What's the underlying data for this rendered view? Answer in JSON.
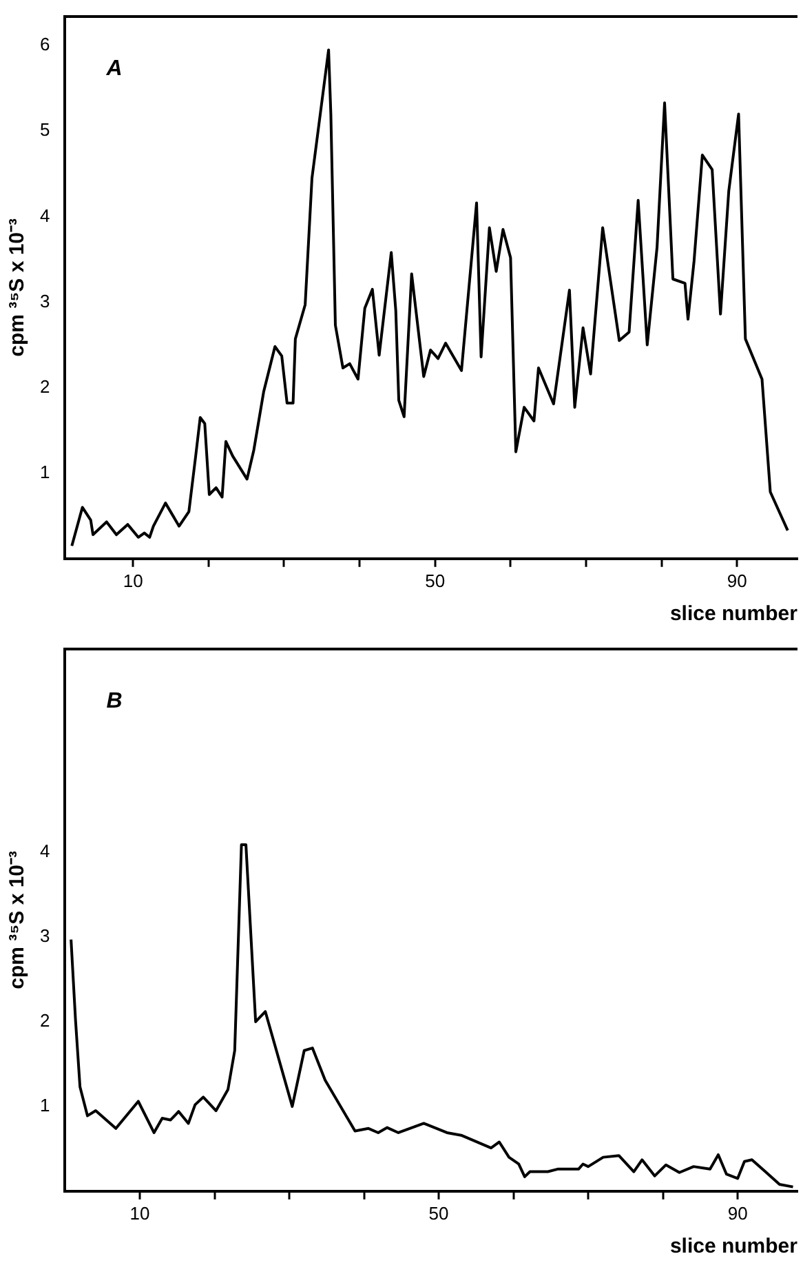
{
  "chart_data": [
    {
      "type": "line",
      "title": "A",
      "xlabel": "slice number",
      "ylabel": "cpm ³⁵S x 10⁻³",
      "grid": false,
      "legend": false,
      "marker": "none",
      "line_style": "solid",
      "xlim": [
        1,
        98
      ],
      "ylim": [
        0,
        6.34
      ],
      "xticks": [
        10,
        {
          "value": 20,
          "label": null
        },
        {
          "value": 30,
          "label": null
        },
        {
          "value": 40,
          "label": null
        },
        50,
        {
          "value": 60,
          "label": null
        },
        {
          "value": 70,
          "label": null
        },
        {
          "value": 80,
          "label": null
        },
        90
      ],
      "yticks": [
        1,
        2,
        3,
        4,
        5,
        6
      ],
      "series": [
        {
          "color": "#000000",
          "x": [
            1.9,
            3.3,
            4.4,
            4.7,
            6.5,
            7.8,
            9.3,
            10.7,
            11.5,
            12.2,
            12.7,
            14.3,
            16.1,
            17.4,
            18.3,
            18.9,
            19.5,
            20.1,
            21.0,
            21.8,
            22.3,
            23.2,
            25.1,
            26.0,
            27.3,
            28.8,
            29.7,
            30.4,
            31.2,
            31.5,
            32.8,
            33.7,
            35.9,
            36.2,
            36.8,
            37.8,
            38.7,
            39.8,
            40.7,
            41.7,
            42.6,
            44.2,
            44.8,
            45.2,
            45.9,
            46.9,
            48.5,
            49.4,
            50.4,
            51.4,
            53.5,
            55.5,
            56.1,
            57.2,
            58.1,
            59.0,
            60.0,
            60.7,
            61.8,
            63.1,
            63.7,
            65.7,
            67.8,
            68.5,
            69.6,
            70.6,
            72.2,
            74.4,
            75.7,
            76.9,
            78.1,
            79.4,
            80.4,
            81.5,
            83.1,
            83.5,
            84.3,
            85.4,
            86.7,
            87.8,
            88.9,
            90.2,
            91.1,
            93.3,
            94.4,
            96.7
          ],
          "values": [
            0.15,
            0.6,
            0.45,
            0.28,
            0.43,
            0.28,
            0.4,
            0.25,
            0.3,
            0.25,
            0.38,
            0.65,
            0.38,
            0.55,
            1.2,
            1.65,
            1.58,
            0.75,
            0.83,
            0.72,
            1.37,
            1.2,
            0.93,
            1.27,
            1.95,
            2.48,
            2.37,
            1.82,
            1.82,
            2.57,
            2.97,
            4.45,
            5.95,
            5.2,
            2.73,
            2.23,
            2.28,
            2.1,
            2.93,
            3.15,
            2.38,
            3.58,
            2.9,
            1.85,
            1.66,
            3.33,
            2.13,
            2.44,
            2.34,
            2.52,
            2.2,
            4.16,
            2.36,
            3.87,
            3.36,
            3.85,
            3.52,
            1.25,
            1.77,
            1.61,
            2.23,
            1.81,
            3.14,
            1.77,
            2.7,
            2.16,
            3.87,
            2.55,
            2.65,
            4.19,
            2.5,
            3.64,
            5.33,
            3.27,
            3.22,
            2.8,
            3.48,
            4.72,
            4.55,
            2.86,
            4.3,
            5.2,
            2.57,
            2.1,
            0.78,
            0.33
          ]
        }
      ]
    },
    {
      "type": "line",
      "title": "B",
      "xlabel": "slice number",
      "ylabel": "cpm ³⁵S x 10⁻³",
      "grid": false,
      "legend": false,
      "marker": "none",
      "line_style": "solid",
      "xlim": [
        0,
        98
      ],
      "ylim": [
        0,
        6.4
      ],
      "xticks": [
        10,
        {
          "value": 20,
          "label": null
        },
        {
          "value": 30,
          "label": null
        },
        {
          "value": 40,
          "label": null
        },
        50,
        {
          "value": 60,
          "label": null
        },
        {
          "value": 70,
          "label": null
        },
        {
          "value": 80,
          "label": null
        },
        90
      ],
      "yticks": [
        1,
        2,
        3,
        4
      ],
      "series": [
        {
          "color": "#000000",
          "x": [
            0.8,
            1.4,
            2.0,
            3.0,
            4.1,
            6.8,
            9.8,
            11.9,
            13.0,
            14.1,
            15.2,
            16.5,
            17.4,
            18.5,
            20.2,
            21.8,
            22.7,
            23.6,
            24.2,
            25.5,
            26.8,
            30.4,
            32.0,
            33.1,
            34.8,
            38.8,
            40.6,
            41.9,
            43.1,
            44.6,
            48.0,
            51.1,
            53.0,
            57.0,
            58.1,
            59.4,
            60.7,
            61.5,
            62.2,
            64.6,
            65.9,
            68.7,
            69.3,
            70.0,
            72.0,
            74.1,
            76.1,
            77.2,
            78.9,
            80.4,
            82.2,
            84.1,
            86.3,
            87.4,
            88.5,
            90.0,
            90.9,
            91.9,
            93.7,
            95.6,
            97.4
          ],
          "values": [
            2.97,
            2.02,
            1.23,
            0.89,
            0.95,
            0.74,
            1.06,
            0.69,
            0.86,
            0.84,
            0.94,
            0.8,
            1.02,
            1.11,
            0.95,
            1.2,
            1.66,
            4.09,
            4.09,
            2.0,
            2.12,
            1.0,
            1.66,
            1.69,
            1.31,
            0.71,
            0.74,
            0.69,
            0.75,
            0.69,
            0.8,
            0.69,
            0.66,
            0.51,
            0.58,
            0.4,
            0.32,
            0.17,
            0.23,
            0.23,
            0.26,
            0.26,
            0.32,
            0.29,
            0.4,
            0.42,
            0.23,
            0.37,
            0.18,
            0.31,
            0.22,
            0.29,
            0.26,
            0.43,
            0.2,
            0.15,
            0.35,
            0.37,
            0.23,
            0.08,
            0.05
          ]
        }
      ]
    }
  ]
}
